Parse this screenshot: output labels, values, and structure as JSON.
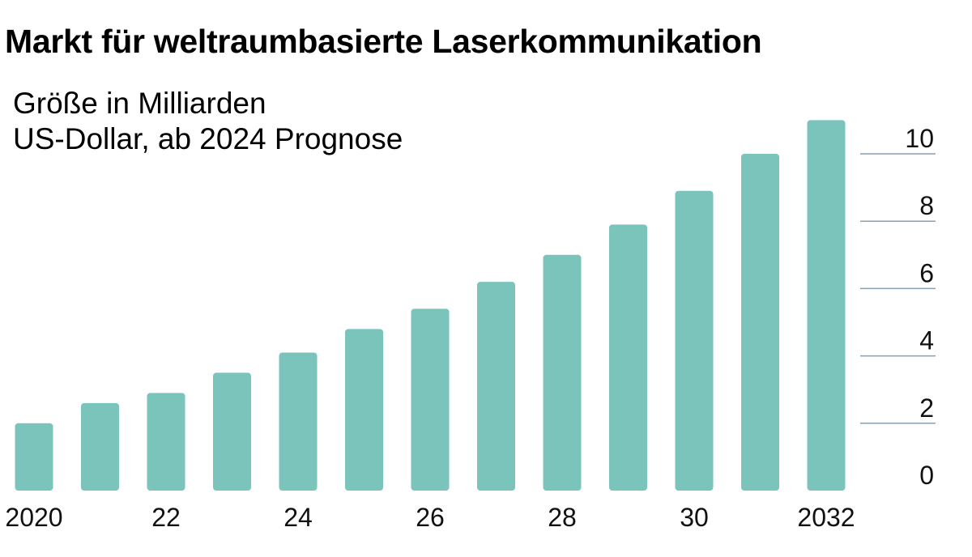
{
  "chart_data": {
    "type": "bar",
    "title": "Markt für weltraumbasierte Laserkommunikation",
    "subtitle_lines": [
      "Größe in Milliarden",
      "US-Dollar, ab 2024 Prognose"
    ],
    "x": [
      2020,
      2021,
      2022,
      2023,
      2024,
      2025,
      2026,
      2027,
      2028,
      2029,
      2030,
      2031,
      2032
    ],
    "values": [
      2.0,
      2.6,
      2.9,
      3.5,
      4.1,
      4.8,
      5.4,
      6.2,
      7.0,
      7.9,
      8.9,
      10.0,
      11.0
    ],
    "x_tick_labels": [
      {
        "x": 2020,
        "label": "2020"
      },
      {
        "x": 2022,
        "label": "22"
      },
      {
        "x": 2024,
        "label": "24"
      },
      {
        "x": 2026,
        "label": "26"
      },
      {
        "x": 2028,
        "label": "28"
      },
      {
        "x": 2030,
        "label": "30"
      },
      {
        "x": 2032,
        "label": "2032"
      }
    ],
    "y_ticks": [
      0,
      2,
      4,
      6,
      8,
      10
    ],
    "y_tick_labels": [
      "0",
      "2",
      "4",
      "6",
      "8",
      "10"
    ],
    "ylim": [
      0,
      11
    ],
    "y_axis_side": "right",
    "grid": true,
    "bar_color": "#7bc4bc",
    "grid_color": "#8a9fb0"
  }
}
